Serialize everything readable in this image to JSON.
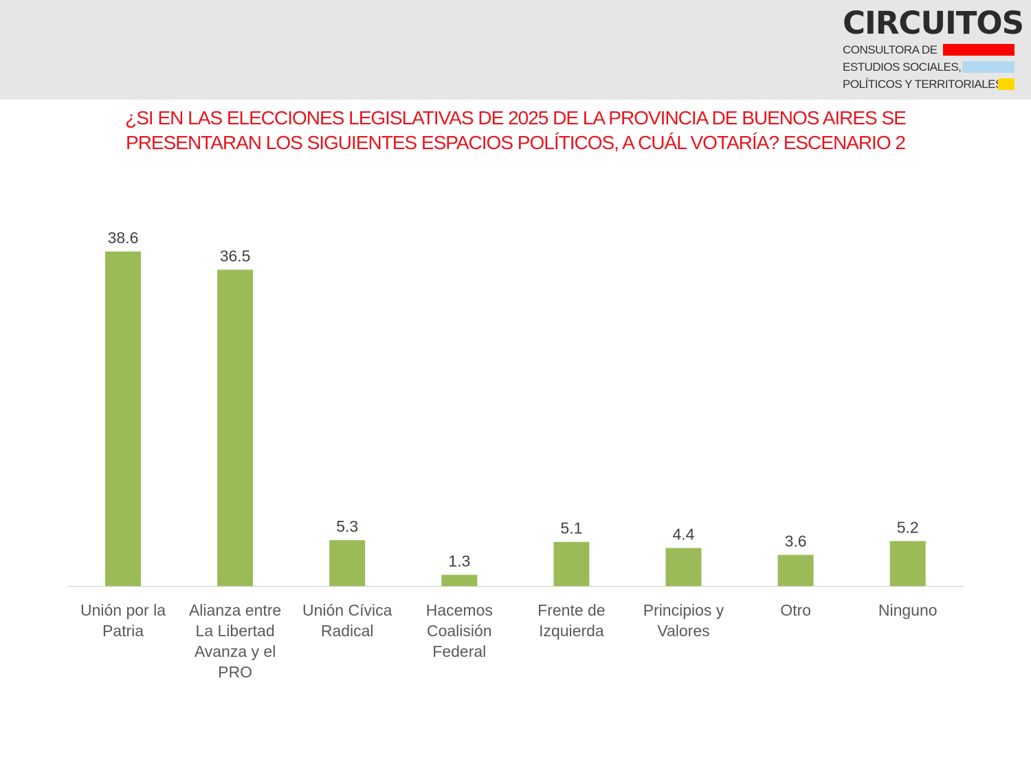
{
  "header": {
    "logo": {
      "name": "CIRCUITOS",
      "lines": [
        "CONSULTORA DE",
        "ESTUDIOS SOCIALES,",
        "POLÍTICOS Y TERRITORIALES"
      ],
      "colors": [
        "#ff0000",
        "#b3d9f2",
        "#ffd700"
      ]
    }
  },
  "chart_data": {
    "type": "bar",
    "title": "¿SI EN LAS ELECCIONES LEGISLATIVAS DE 2025 DE LA PROVINCIA DE BUENOS AIRES SE PRESENTARAN LOS SIGUIENTES ESPACIOS POLÍTICOS, A CUÁL VOTARÍA? ESCENARIO 2",
    "categories": [
      "Unión por la\nPatria",
      "Alianza entre\nLa Libertad\nAvanza y el\nPRO",
      "Unión Cívica\nRadical",
      "Hacemos\nCoalisión\nFederal",
      "Frente de\nIzquierda",
      "Principios y\nValores",
      "Otro",
      "Ninguno"
    ],
    "values": [
      38.6,
      36.5,
      5.3,
      1.3,
      5.1,
      4.4,
      3.6,
      5.2
    ],
    "value_labels": [
      "38.6",
      "36.5",
      "5.3",
      "1.3",
      "5.1",
      "4.4",
      "3.6",
      "5.2"
    ],
    "xlabel": "",
    "ylabel": "",
    "ylim": [
      0,
      40
    ],
    "grid": false,
    "bar_color": "#9bbb59",
    "title_color": "#e8141c"
  }
}
